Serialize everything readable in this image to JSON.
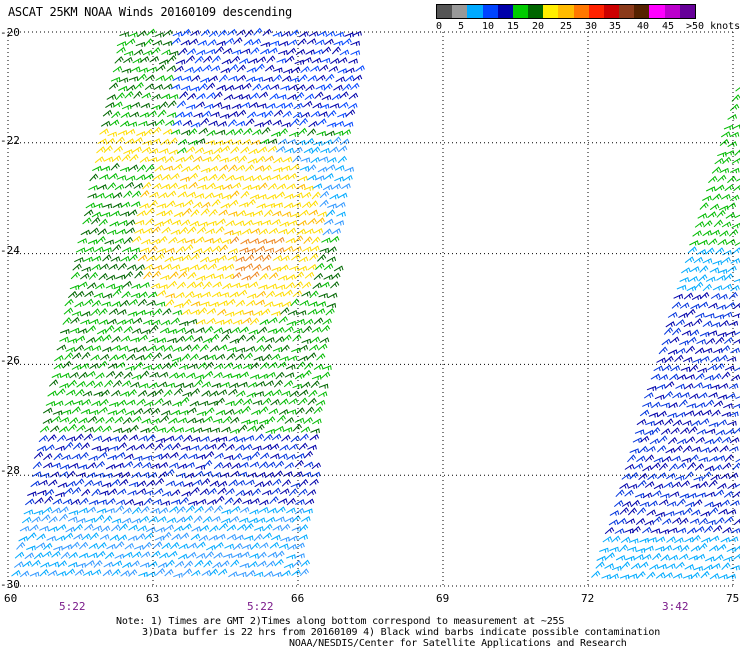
{
  "header": {
    "title": "ASCAT 25KM NOAA Winds 20160109 descending"
  },
  "colorbar": {
    "colors": [
      "#555555",
      "#999999",
      "#00aaff",
      "#0044ff",
      "#0000aa",
      "#00cc00",
      "#006600",
      "#ffee00",
      "#ffbb00",
      "#ff7700",
      "#ff2200",
      "#cc0000",
      "#8b3a1a",
      "#552200",
      "#ff00ff",
      "#bb00cc",
      "#660099"
    ],
    "labels": [
      "0",
      "5",
      "10",
      "15",
      "20",
      "25",
      "30",
      "35",
      "40",
      "45",
      ">50 knots"
    ]
  },
  "axes": {
    "lat_labels": [
      "-20",
      "-22",
      "-24",
      "-26",
      "-28",
      "-30"
    ],
    "lon_labels": [
      "60",
      "63",
      "66",
      "69",
      "72",
      "75"
    ]
  },
  "pass_times": [
    "5:22",
    "5:22",
    "3:42"
  ],
  "notes": [
    "Note: 1) Times are GMT 2)Times along bottom correspond to measurement at ~25S",
    "3)Data buffer is 22 hrs from 20160109 4) Black wind barbs indicate possible contamination",
    "NOAA/NESDIS/Center for Satellite Applications and Research"
  ]
}
